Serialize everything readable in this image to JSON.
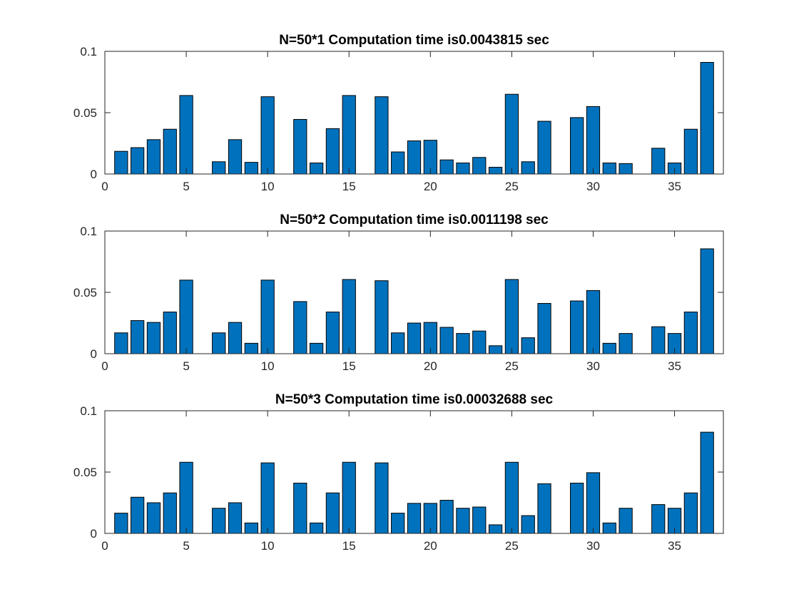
{
  "colors": {
    "bar": "#0072BD",
    "axis": "#262626"
  },
  "chart_data": [
    {
      "type": "bar",
      "title": "N=50*1 Computation time is0.0043815 sec",
      "xlabel": "",
      "ylabel": "",
      "xlim": [
        0,
        38
      ],
      "ylim": [
        0,
        0.1
      ],
      "xticks": [
        0,
        5,
        10,
        15,
        20,
        25,
        30,
        35
      ],
      "yticks": [
        0,
        0.05,
        0.1
      ],
      "ytick_labels": [
        "0",
        "0.05",
        "0.1"
      ],
      "grid": false,
      "x": [
        1,
        2,
        3,
        4,
        5,
        6,
        7,
        8,
        9,
        10,
        11,
        12,
        13,
        14,
        15,
        16,
        17,
        18,
        19,
        20,
        21,
        22,
        23,
        24,
        25,
        26,
        27,
        28,
        29,
        30,
        31,
        32,
        33,
        34,
        35,
        36,
        37
      ],
      "values": [
        0.0185,
        0.0215,
        0.028,
        0.0365,
        0.064,
        0,
        0.01,
        0.028,
        0.0095,
        0.063,
        0,
        0.0445,
        0.009,
        0.037,
        0.064,
        0,
        0.063,
        0.018,
        0.027,
        0.0275,
        0.0115,
        0.009,
        0.0135,
        0.0055,
        0.065,
        0.01,
        0.043,
        0,
        0.046,
        0.055,
        0.009,
        0.0085,
        0,
        0.021,
        0.009,
        0.0365,
        0.091
      ]
    },
    {
      "type": "bar",
      "title": "N=50*2 Computation time is0.0011198 sec",
      "xlabel": "",
      "ylabel": "",
      "xlim": [
        0,
        38
      ],
      "ylim": [
        0,
        0.1
      ],
      "xticks": [
        0,
        5,
        10,
        15,
        20,
        25,
        30,
        35
      ],
      "yticks": [
        0,
        0.05,
        0.1
      ],
      "ytick_labels": [
        "0",
        "0.05",
        "0.1"
      ],
      "grid": false,
      "x": [
        1,
        2,
        3,
        4,
        5,
        6,
        7,
        8,
        9,
        10,
        11,
        12,
        13,
        14,
        15,
        16,
        17,
        18,
        19,
        20,
        21,
        22,
        23,
        24,
        25,
        26,
        27,
        28,
        29,
        30,
        31,
        32,
        33,
        34,
        35,
        36,
        37
      ],
      "values": [
        0.017,
        0.027,
        0.0255,
        0.034,
        0.06,
        0,
        0.017,
        0.0255,
        0.0085,
        0.06,
        0,
        0.0425,
        0.0085,
        0.034,
        0.0605,
        0,
        0.0595,
        0.017,
        0.025,
        0.0255,
        0.0215,
        0.0165,
        0.0185,
        0.0065,
        0.0605,
        0.013,
        0.041,
        0,
        0.043,
        0.0515,
        0.0085,
        0.0165,
        0,
        0.022,
        0.0165,
        0.034,
        0.0855
      ]
    },
    {
      "type": "bar",
      "title": "N=50*3 Computation time is0.00032688 sec",
      "xlabel": "",
      "ylabel": "",
      "xlim": [
        0,
        38
      ],
      "ylim": [
        0,
        0.1
      ],
      "xticks": [
        0,
        5,
        10,
        15,
        20,
        25,
        30,
        35
      ],
      "yticks": [
        0,
        0.05,
        0.1
      ],
      "ytick_labels": [
        "0",
        "0.05",
        "0.1"
      ],
      "grid": false,
      "x": [
        1,
        2,
        3,
        4,
        5,
        6,
        7,
        8,
        9,
        10,
        11,
        12,
        13,
        14,
        15,
        16,
        17,
        18,
        19,
        20,
        21,
        22,
        23,
        24,
        25,
        26,
        27,
        28,
        29,
        30,
        31,
        32,
        33,
        34,
        35,
        36,
        37
      ],
      "values": [
        0.0165,
        0.0295,
        0.025,
        0.033,
        0.058,
        0,
        0.0205,
        0.025,
        0.0085,
        0.0575,
        0,
        0.041,
        0.0085,
        0.033,
        0.058,
        0,
        0.0575,
        0.0165,
        0.0245,
        0.0245,
        0.027,
        0.0205,
        0.0215,
        0.007,
        0.058,
        0.0145,
        0.0405,
        0,
        0.041,
        0.0495,
        0.0085,
        0.0205,
        0,
        0.0235,
        0.0205,
        0.033,
        0.0825
      ]
    }
  ]
}
